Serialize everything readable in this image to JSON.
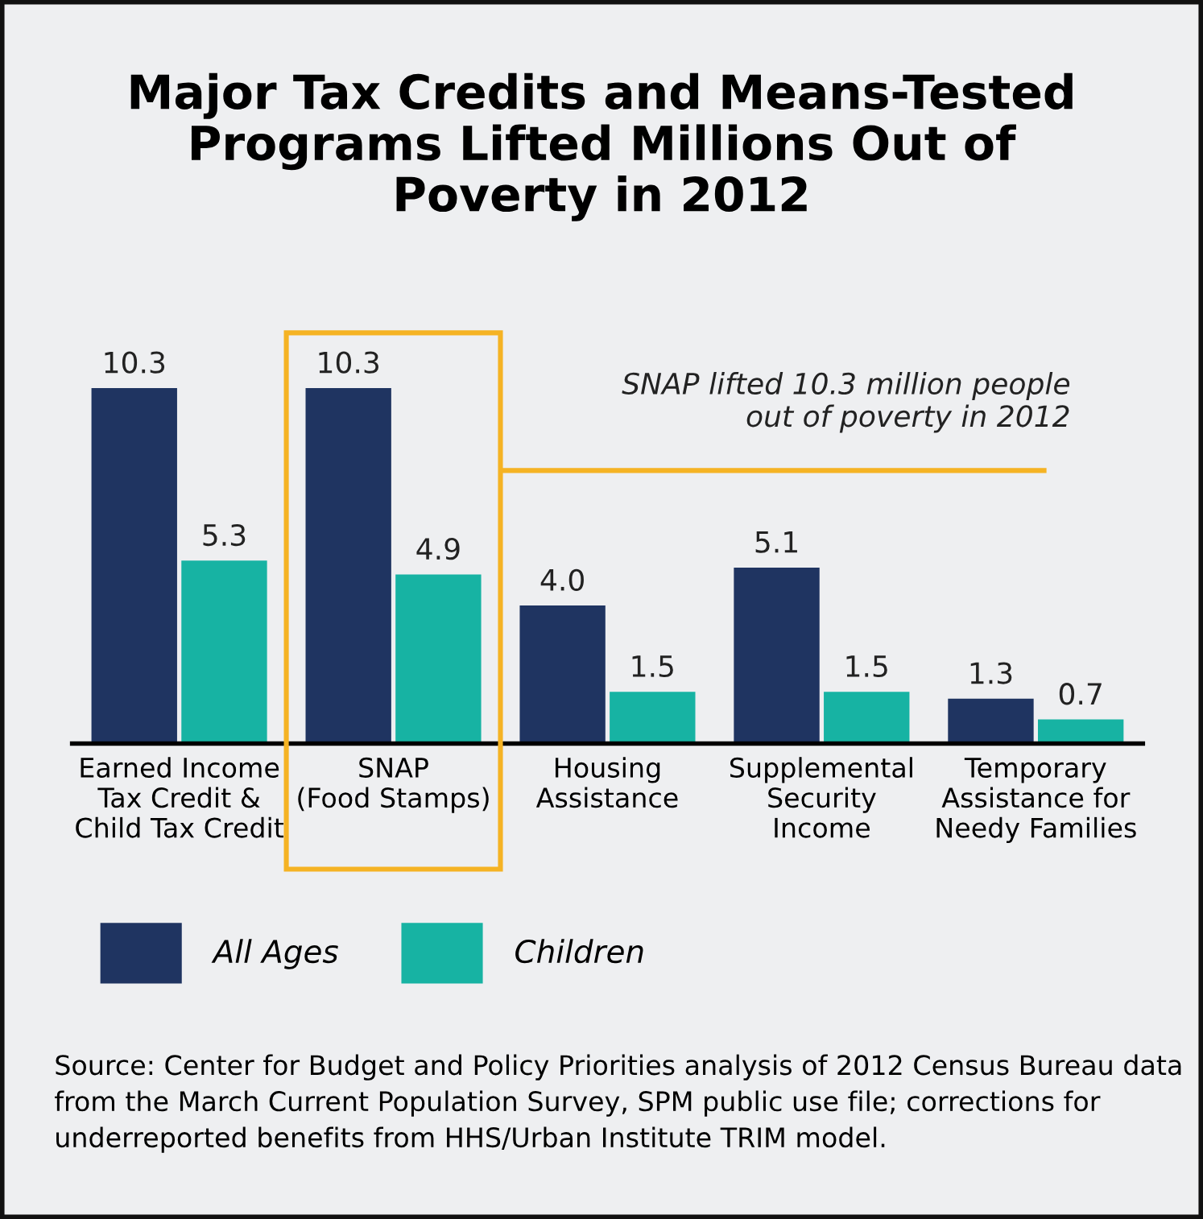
{
  "chart_data": {
    "type": "bar",
    "title": "Major Tax Credits and Means-Tested\nPrograms Lifted Millions Out of\nPoverty in 2012",
    "categories": [
      "Earned Income\nTax Credit &\nChild Tax Credit",
      "SNAP\n(Food Stamps)",
      "Housing\nAssistance",
      "Supplemental\nSecurity\nIncome",
      "Temporary\nAssistance for\nNeedy Families"
    ],
    "series": [
      {
        "name": "All Ages",
        "color": "#1f3461",
        "values": [
          10.3,
          10.3,
          4.0,
          5.1,
          1.3
        ],
        "value_labels": [
          "10.3",
          "10.3",
          "4.0",
          "5.1",
          "1.3"
        ]
      },
      {
        "name": "Children",
        "color": "#17b3a3",
        "values": [
          5.3,
          4.9,
          1.5,
          1.5,
          0.7
        ],
        "value_labels": [
          "5.3",
          "4.9",
          "1.5",
          "1.5",
          "0.7"
        ]
      }
    ],
    "grid": false,
    "legend": "bottom left",
    "annotations": [
      "SNAP lifted 10.3 million people\nout of poverty in 2012",
      "Source: Center for Budget and Policy Priorities analysis of 2012 Census Bureau data from the March Current Population Survey, SPM public use file; corrections for underreported benefits from HHS/Urban Institute TRIM model."
    ]
  }
}
